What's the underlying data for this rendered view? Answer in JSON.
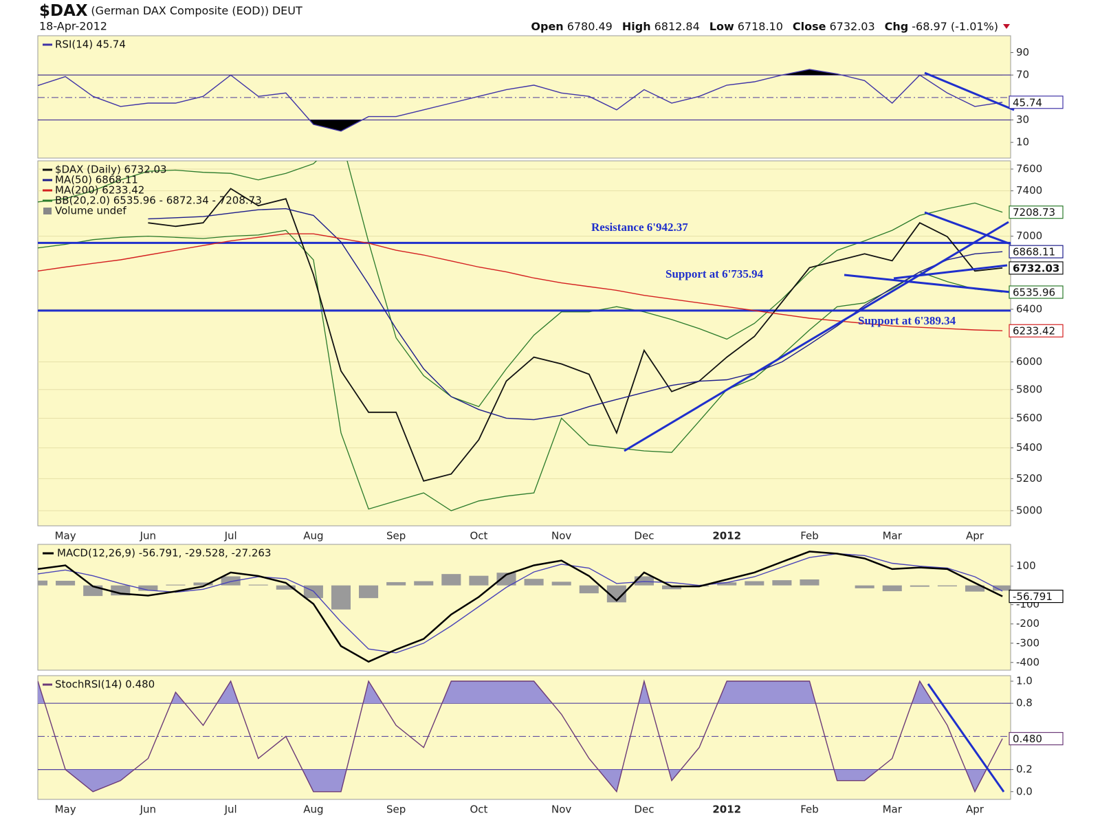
{
  "header": {
    "symbol": "$DAX",
    "name": "(German DAX Composite (EOD))",
    "exchange": "DEUT",
    "date": "18-Apr-2012",
    "quote": [
      {
        "label": "Open",
        "value": "6780.49"
      },
      {
        "label": "High",
        "value": "6812.84"
      },
      {
        "label": "Low",
        "value": "6718.10"
      },
      {
        "label": "Close",
        "value": "6732.03"
      },
      {
        "label": "Chg",
        "value": "-68.97 (-1.01%)"
      }
    ]
  },
  "chart_data": [
    {
      "type": "line",
      "ylim": [
        -4,
        105
      ],
      "yticks": [
        10,
        30,
        70,
        90
      ],
      "bands": {
        "lower": 30,
        "upper": 70
      },
      "midline": 50,
      "shade_color": "#000000",
      "series": [
        {
          "name": "RSI(14) 45.74",
          "color": "#3f33a6",
          "box": true,
          "values": [
            60.6,
            68.6,
            51,
            42,
            45,
            45,
            51,
            70,
            51,
            54,
            26,
            20,
            33,
            33,
            39,
            45,
            51,
            57,
            61,
            54,
            51,
            39,
            57,
            45,
            51,
            61,
            64,
            70,
            75,
            71,
            65,
            45,
            70,
            54,
            42,
            45.74
          ]
        }
      ]
    },
    {
      "type": "line",
      "log": true,
      "grid": true,
      "ylim": [
        4908,
        7677
      ],
      "yticks": [
        5000,
        5200,
        5400,
        5600,
        5800,
        6000,
        6400,
        7000,
        7400,
        7600
      ],
      "categories": [
        null,
        "May",
        null,
        null,
        "Jun",
        null,
        null,
        "Jul",
        null,
        null,
        "Aug",
        null,
        null,
        "Sep",
        null,
        null,
        "Oct",
        null,
        null,
        "Nov",
        null,
        null,
        "Dec",
        null,
        null,
        "2012",
        null,
        null,
        "Feb",
        null,
        null,
        "Mar",
        null,
        null,
        "Apr",
        null
      ],
      "series": [
        {
          "name": "$DAX (Daily) 6732.03",
          "color": "#111111",
          "box": true,
          "values": [
            null,
            null,
            null,
            null,
            7115,
            7085,
            7115,
            7420,
            7266,
            7328,
            6678,
            5934,
            5641,
            5641,
            5185,
            5230,
            5454,
            5861,
            6035,
            5985,
            5910,
            5500,
            6086,
            5786,
            5861,
            6035,
            6190,
            6457,
            6735,
            6792,
            6850,
            6792,
            7115,
            6996,
            6707,
            6732.03
          ]
        },
        {
          "name": "MA(50) 6868.11",
          "color": "#1c1c8a",
          "box": true,
          "values": [
            null,
            null,
            null,
            null,
            7150,
            7160,
            7170,
            7200,
            7230,
            7240,
            7180,
            6950,
            6600,
            6250,
            5950,
            5750,
            5660,
            5600,
            5590,
            5620,
            5680,
            5730,
            5780,
            5830,
            5860,
            5870,
            5920,
            6000,
            6130,
            6270,
            6430,
            6570,
            6700,
            6800,
            6850,
            6868.11
          ]
        },
        {
          "name": "MA(200) 6233.42",
          "color": "#d42020",
          "box": true,
          "values": [
            6707,
            6740,
            6770,
            6800,
            6840,
            6880,
            6920,
            6960,
            6990,
            7020,
            7020,
            6980,
            6940,
            6880,
            6840,
            6790,
            6740,
            6700,
            6650,
            6610,
            6580,
            6550,
            6510,
            6480,
            6450,
            6420,
            6390,
            6360,
            6330,
            6310,
            6290,
            6270,
            6260,
            6250,
            6240,
            6233.42
          ]
        }
      ],
      "bollinger": {
        "name": "BB(20,2.0) 6535.96 - 6872.34 - 7208.73",
        "color": "#2a7a2a",
        "upper": [
          7300,
          7330,
          7400,
          7500,
          7580,
          7590,
          7570,
          7560,
          7500,
          7560,
          7650,
          7900,
          6950,
          6180,
          5900,
          5750,
          5680,
          5950,
          6200,
          6380,
          6380,
          6420,
          6380,
          6320,
          6250,
          6170,
          6290,
          6480,
          6700,
          6880,
          6960,
          7050,
          7180,
          7240,
          7290,
          7208.73
        ],
        "lower": [
          6900,
          6930,
          6970,
          6990,
          7000,
          6990,
          6980,
          7000,
          7010,
          7050,
          6800,
          5500,
          5010,
          5060,
          5110,
          5000,
          5060,
          5090,
          5110,
          5600,
          5420,
          5400,
          5380,
          5370,
          5580,
          5800,
          5880,
          6050,
          6240,
          6420,
          6450,
          6560,
          6700,
          6620,
          6560,
          6535.96
        ]
      },
      "volume_label": "Volume undef",
      "hlines": [
        {
          "value": 6942.37,
          "label": "Resistance 6'942.37",
          "color": "#1f2fcc"
        },
        {
          "value": 6389.34,
          "label": "Support at 6'389.34",
          "color": "#1f2fcc"
        }
      ],
      "annotations": [
        "Support at 6'735.94"
      ]
    },
    {
      "type": "macd",
      "title": "MACD(12,26,9) -56.791, -29.528, -27.263",
      "ylim": [
        -440,
        213
      ],
      "yticks": [
        100,
        -100,
        -200,
        -300,
        -400
      ],
      "series": [
        {
          "kind": "histogram",
          "color": "#9a9a9a",
          "values": [
            25,
            24,
            -55,
            -52,
            -28,
            4,
            15,
            47,
            4,
            -22,
            -66,
            -125,
            -66,
            17,
            22,
            59,
            50,
            66,
            34,
            19,
            -41,
            -88,
            47,
            -20,
            -5,
            16,
            22,
            27,
            31,
            0,
            -15,
            -30,
            -7,
            -5,
            -32,
            -27.263
          ]
        },
        {
          "kind": "line",
          "color": "#4a44b8",
          "values": [
            60,
            80,
            50,
            10,
            -25,
            -35,
            -20,
            20,
            45,
            35,
            -30,
            -190,
            -330,
            -350,
            -300,
            -210,
            -110,
            -10,
            70,
            110,
            90,
            10,
            20,
            15,
            0,
            15,
            45,
            95,
            145,
            165,
            155,
            115,
            100,
            90,
            45,
            -29.528
          ]
        },
        {
          "kind": "line",
          "color": "#000000",
          "width": 2.5,
          "box": true,
          "values": [
            85,
            104,
            -5,
            -42,
            -53,
            -31,
            -5,
            67,
            49,
            13,
            -96,
            -315,
            -396,
            -333,
            -278,
            -151,
            -60,
            56,
            104,
            129,
            49,
            -78,
            67,
            -5,
            -5,
            31,
            67,
            122,
            176,
            165,
            140,
            85,
            93,
            85,
            13,
            -56.791
          ]
        }
      ]
    },
    {
      "type": "line",
      "ylim": [
        -0.07,
        1.05
      ],
      "yticks": [
        {
          "value": 1,
          "label": "1.0"
        },
        0.8,
        0.2,
        {
          "value": 0,
          "label": "0.0"
        }
      ],
      "bands": {
        "lower": 0.2,
        "upper": 0.8
      },
      "midline": 0.5,
      "shade_color": "#9b94d6",
      "categories": [
        null,
        "May",
        null,
        null,
        "Jun",
        null,
        null,
        "Jul",
        null,
        null,
        "Aug",
        null,
        null,
        "Sep",
        null,
        null,
        "Oct",
        null,
        null,
        "Nov",
        null,
        null,
        "Dec",
        null,
        null,
        "2012",
        null,
        null,
        "Feb",
        null,
        null,
        "Mar",
        null,
        null,
        "Apr",
        null
      ],
      "series": [
        {
          "name": "StochRSI(14) 0.480",
          "color": "#6b3a78",
          "box": true,
          "values": [
            1,
            0.2,
            0,
            0.1,
            0.3,
            0.9,
            0.6,
            1,
            0.3,
            0.5,
            0,
            0,
            1,
            0.6,
            0.4,
            1,
            1,
            1,
            1,
            0.7,
            0.3,
            0,
            1,
            0.1,
            0.4,
            1,
            1,
            1,
            1,
            0.1,
            0.1,
            0.3,
            1,
            0.6,
            0,
            0.48
          ],
          "value_labels": [
            null,
            null,
            null,
            null,
            null,
            null,
            null,
            null,
            null,
            null,
            null,
            null,
            null,
            null,
            null,
            null,
            null,
            null,
            null,
            null,
            null,
            null,
            null,
            null,
            null,
            null,
            null,
            null,
            null,
            null,
            null,
            null,
            null,
            null,
            null,
            "0.480"
          ]
        }
      ]
    }
  ]
}
